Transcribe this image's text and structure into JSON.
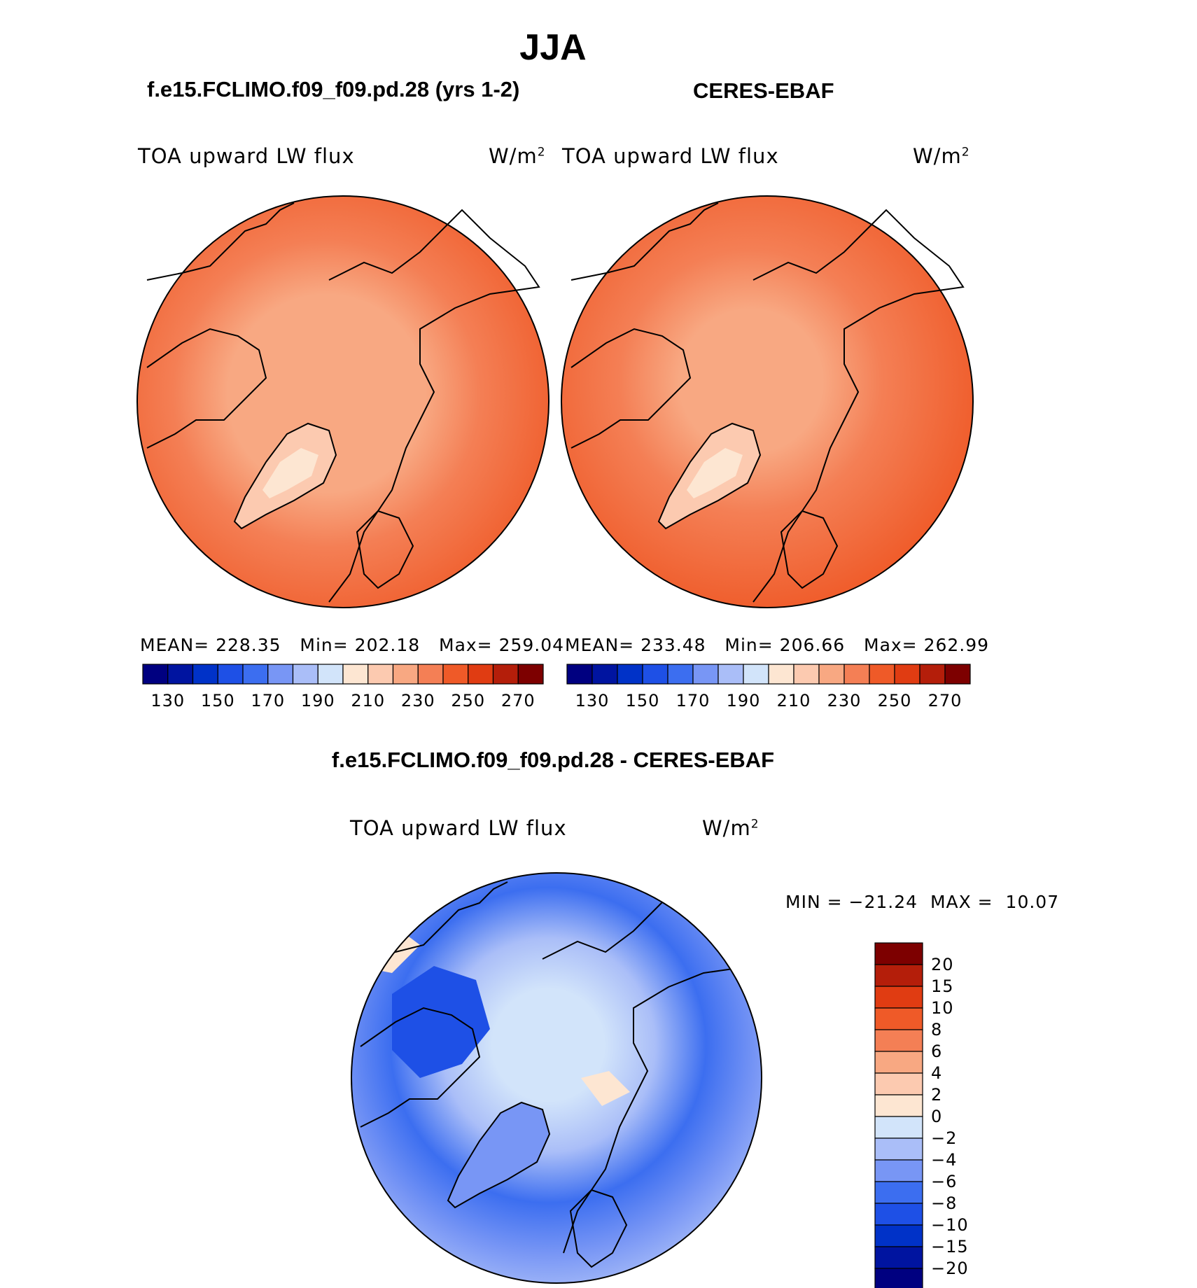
{
  "page": {
    "title": "JJA",
    "model_title": "f.e15.FCLIMO.f09_f09.pd.28 (yrs 1-2)",
    "obs_title": "CERES-EBAF",
    "diff_title": "f.e15.FCLIMO.f09_f09.pd.28 - CERES-EBAF"
  },
  "colors": {
    "abs_levels": [
      "#000080",
      "#0014a0",
      "#0032c8",
      "#1e50e6",
      "#3c6ef0",
      "#7896f5",
      "#aabef8",
      "#d2e4fa",
      "#fde6d2",
      "#fccab0",
      "#f8a882",
      "#f47f55",
      "#ef5a28",
      "#e03c12",
      "#b41e0a",
      "#7d0000"
    ],
    "diff_levels": [
      "#000080",
      "#0014a0",
      "#0032c8",
      "#1e50e6",
      "#3c6ef0",
      "#7896f5",
      "#aabef8",
      "#d2e4fa",
      "#fde6d2",
      "#fccab0",
      "#f8a882",
      "#f47f55",
      "#ef5a28",
      "#e03c12",
      "#b41e0a",
      "#7d0000"
    ],
    "land_outline": "#000000"
  },
  "chart_data": [
    {
      "type": "heatmap",
      "name": "model",
      "projection": "north-polar-stereographic",
      "title": "f.e15.FCLIMO.f09_f09.pd.28 (yrs 1-2)",
      "variable": "TOA upward LW flux",
      "units": "W/m",
      "units_sup": "2",
      "stats": {
        "mean_label": "MEAN=",
        "mean": "228.35",
        "min_label": "Min=",
        "min": "202.18",
        "max_label": "Max=",
        "max": "259.04"
      },
      "colorbar": {
        "orientation": "horizontal",
        "levels": [
          130,
          140,
          150,
          160,
          170,
          180,
          190,
          200,
          210,
          220,
          230,
          240,
          250,
          260,
          270
        ],
        "tick_labels": [
          "130",
          "150",
          "170",
          "190",
          "210",
          "230",
          "250",
          "270"
        ]
      }
    },
    {
      "type": "heatmap",
      "name": "obs",
      "projection": "north-polar-stereographic",
      "title": "CERES-EBAF",
      "variable": "TOA upward LW flux",
      "units": "W/m",
      "units_sup": "2",
      "stats": {
        "mean_label": "MEAN=",
        "mean": "233.48",
        "min_label": "Min=",
        "min": "206.66",
        "max_label": "Max=",
        "max": "262.99"
      },
      "colorbar": {
        "orientation": "horizontal",
        "levels": [
          130,
          140,
          150,
          160,
          170,
          180,
          190,
          200,
          210,
          220,
          230,
          240,
          250,
          260,
          270
        ],
        "tick_labels": [
          "130",
          "150",
          "170",
          "190",
          "210",
          "230",
          "250",
          "270"
        ]
      }
    },
    {
      "type": "heatmap",
      "name": "difference",
      "projection": "north-polar-stereographic",
      "title": "f.e15.FCLIMO.f09_f09.pd.28 - CERES-EBAF",
      "variable": "TOA upward LW flux",
      "units": "W/m",
      "units_sup": "2",
      "stats": {
        "min_label": "MIN =",
        "min": "−21.24",
        "max_label": "MAX =",
        "max": "10.07"
      },
      "colorbar": {
        "orientation": "vertical",
        "levels": [
          -20,
          -15,
          -10,
          -8,
          -6,
          -4,
          -2,
          0,
          2,
          4,
          6,
          8,
          10,
          15,
          20
        ],
        "tick_labels": [
          "20",
          "15",
          "10",
          "8",
          "6",
          "4",
          "2",
          "0",
          "−2",
          "−4",
          "−6",
          "−8",
          "−10",
          "−15",
          "−20"
        ]
      }
    }
  ]
}
